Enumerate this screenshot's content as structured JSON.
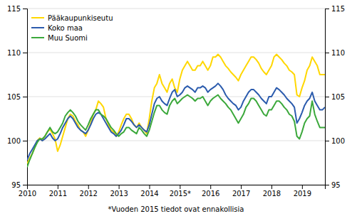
{
  "chart_data": {
    "type": "line",
    "x": [
      2010.0,
      2010.0833333333333,
      2010.1666666666667,
      2010.25,
      2010.3333333333333,
      2010.4166666666667,
      2010.5,
      2010.5833333333333,
      2010.6666666666667,
      2010.75,
      2010.8333333333333,
      2010.9166666666667,
      2011.0,
      2011.0833333333333,
      2011.1666666666667,
      2011.25,
      2011.3333333333333,
      2011.4166666666667,
      2011.5,
      2011.5833333333333,
      2011.6666666666667,
      2011.75,
      2011.8333333333333,
      2011.9166666666667,
      2012.0,
      2012.0833333333333,
      2012.1666666666667,
      2012.25,
      2012.3333333333333,
      2012.4166666666667,
      2012.5,
      2012.5833333333333,
      2012.6666666666667,
      2012.75,
      2012.8333333333333,
      2012.9166666666667,
      2013.0,
      2013.0833333333333,
      2013.1666666666667,
      2013.25,
      2013.3333333333333,
      2013.4166666666667,
      2013.5,
      2013.5833333333333,
      2013.6666666666667,
      2013.75,
      2013.8333333333333,
      2013.9166666666667,
      2014.0,
      2014.0833333333333,
      2014.1666666666667,
      2014.25,
      2014.3333333333333,
      2014.4166666666667,
      2014.5,
      2014.5833333333333,
      2014.6666666666667,
      2014.75,
      2014.8333333333333,
      2014.9166666666667,
      2015.0,
      2015.0833333333333,
      2015.1666666666667,
      2015.25,
      2015.3333333333333,
      2015.4166666666667,
      2015.5,
      2015.5833333333333,
      2015.6666666666667,
      2015.75,
      2015.8333333333333,
      2015.9166666666667,
      2016.0,
      2016.0833333333333,
      2016.1666666666667,
      2016.25,
      2016.3333333333333,
      2016.4166666666667,
      2016.5,
      2016.5833333333333,
      2016.6666666666667,
      2016.75,
      2016.8333333333333,
      2016.9166666666667,
      2017.0,
      2017.0833333333333,
      2017.1666666666667,
      2017.25,
      2017.3333333333333,
      2017.4166666666667,
      2017.5,
      2017.5833333333333,
      2017.6666666666667,
      2017.75,
      2017.8333333333333,
      2017.9166666666667,
      2018.0,
      2018.0833333333333,
      2018.1666666666667,
      2018.25,
      2018.3333333333333,
      2018.4166666666667,
      2018.5,
      2018.5833333333333,
      2018.6666666666667,
      2018.75,
      2018.8333333333333,
      2018.9166666666667,
      2019.0,
      2019.0833333333333,
      2019.1666666666667,
      2019.25,
      2019.3333333333333,
      2019.4166666666667,
      2019.5,
      2019.5833333333333,
      2019.6666666666667,
      2019.75
    ],
    "series": [
      {
        "name": "Pääkaupunkiseutu",
        "color": "#FFD700",
        "values": [
          97.4,
          98.0,
          98.5,
          99.2,
          100.0,
          100.3,
          100.0,
          100.5,
          101.0,
          101.3,
          100.8,
          100.2,
          98.8,
          99.5,
          100.5,
          101.5,
          102.5,
          103.0,
          102.8,
          102.2,
          101.8,
          101.2,
          101.0,
          100.5,
          101.2,
          102.0,
          103.0,
          103.5,
          104.5,
          104.2,
          103.8,
          102.5,
          101.8,
          101.2,
          101.0,
          100.5,
          101.0,
          101.8,
          102.5,
          103.0,
          103.0,
          102.5,
          101.8,
          101.5,
          102.0,
          101.5,
          101.2,
          100.8,
          102.5,
          104.5,
          106.0,
          106.5,
          107.5,
          106.5,
          106.0,
          105.5,
          106.5,
          107.0,
          106.0,
          105.5,
          107.0,
          108.0,
          108.5,
          109.0,
          108.5,
          108.0,
          108.0,
          108.5,
          108.5,
          109.0,
          108.5,
          108.0,
          108.5,
          109.5,
          109.5,
          109.8,
          109.5,
          109.0,
          108.5,
          108.2,
          107.8,
          107.5,
          107.2,
          106.8,
          107.5,
          108.0,
          108.5,
          109.0,
          109.5,
          109.5,
          109.2,
          108.8,
          108.2,
          107.8,
          107.5,
          108.0,
          108.5,
          109.5,
          109.8,
          109.5,
          109.2,
          108.8,
          108.5,
          108.0,
          107.8,
          107.5,
          105.2,
          105.0,
          106.0,
          106.8,
          108.0,
          108.5,
          109.5,
          109.0,
          108.5,
          107.5,
          107.5,
          107.5
        ]
      },
      {
        "name": "Koko maa",
        "color": "#2B5BAD",
        "values": [
          97.8,
          98.5,
          99.0,
          99.5,
          100.0,
          100.2,
          100.0,
          100.2,
          100.5,
          100.8,
          100.3,
          100.0,
          100.2,
          100.8,
          101.5,
          102.0,
          102.5,
          102.8,
          102.5,
          102.0,
          101.5,
          101.2,
          101.0,
          100.8,
          101.2,
          101.8,
          102.5,
          103.0,
          103.2,
          103.0,
          102.5,
          102.0,
          101.5,
          101.0,
          100.8,
          100.5,
          100.8,
          101.2,
          101.8,
          102.5,
          102.5,
          102.2,
          101.8,
          101.5,
          101.8,
          101.5,
          101.2,
          101.0,
          101.8,
          103.0,
          104.2,
          104.8,
          105.0,
          104.5,
          104.2,
          104.0,
          104.8,
          105.5,
          105.8,
          105.0,
          105.2,
          105.5,
          106.0,
          106.2,
          106.0,
          105.8,
          105.5,
          106.0,
          106.0,
          106.2,
          106.0,
          105.5,
          105.8,
          106.0,
          106.2,
          106.5,
          106.2,
          105.8,
          105.2,
          104.8,
          104.5,
          104.2,
          104.0,
          103.5,
          103.8,
          104.5,
          105.0,
          105.5,
          105.8,
          105.8,
          105.5,
          105.2,
          104.8,
          104.5,
          104.2,
          105.0,
          105.0,
          105.5,
          106.0,
          105.8,
          105.5,
          105.2,
          104.8,
          104.5,
          104.2,
          103.8,
          102.0,
          102.5,
          103.2,
          104.0,
          104.5,
          104.8,
          105.5,
          104.5,
          104.0,
          103.5,
          103.5,
          103.8
        ]
      },
      {
        "name": "Muu Suomi",
        "color": "#3BA83B",
        "values": [
          97.0,
          97.8,
          98.5,
          99.2,
          99.8,
          100.2,
          100.2,
          100.5,
          101.0,
          101.5,
          101.0,
          100.8,
          101.0,
          101.5,
          102.0,
          102.8,
          103.2,
          103.5,
          103.2,
          102.8,
          102.2,
          101.8,
          101.5,
          101.2,
          101.8,
          102.5,
          103.0,
          103.5,
          103.5,
          103.0,
          102.8,
          102.5,
          102.0,
          101.5,
          101.2,
          100.8,
          100.5,
          100.8,
          101.0,
          101.5,
          101.5,
          101.2,
          101.0,
          100.8,
          101.5,
          101.2,
          100.8,
          100.5,
          101.2,
          102.2,
          103.2,
          104.0,
          104.0,
          103.5,
          103.2,
          103.0,
          104.0,
          104.5,
          104.8,
          104.2,
          104.5,
          104.8,
          105.0,
          105.2,
          105.0,
          104.8,
          104.5,
          104.8,
          104.8,
          105.0,
          104.5,
          104.0,
          104.5,
          104.8,
          105.0,
          105.2,
          104.8,
          104.5,
          104.2,
          103.8,
          103.5,
          103.0,
          102.5,
          102.0,
          102.5,
          103.0,
          103.8,
          104.2,
          104.8,
          104.8,
          104.5,
          104.0,
          103.5,
          103.0,
          102.8,
          103.5,
          103.5,
          104.0,
          104.5,
          104.5,
          104.2,
          103.8,
          103.5,
          103.0,
          102.8,
          102.2,
          100.5,
          100.2,
          101.0,
          102.0,
          102.5,
          102.8,
          104.5,
          103.0,
          102.2,
          101.5,
          101.5,
          101.5
        ]
      }
    ],
    "xlim": [
      2010.0,
      2019.75
    ],
    "xticks": [
      2010,
      2011,
      2012,
      2013,
      2014,
      {
        "value": 2015,
        "label": "2015*"
      },
      2016,
      2017,
      2018,
      2019
    ],
    "ylim": [
      95,
      115
    ],
    "yticks": [
      95,
      100,
      105,
      110,
      115
    ],
    "y2lim": [
      95,
      115
    ],
    "y2ticks": [
      95,
      100,
      105,
      110,
      115
    ],
    "grid": true,
    "legend": "upper left",
    "annotations": [
      "*Vuoden 2015 tiedot ovat ennakollisia"
    ]
  }
}
